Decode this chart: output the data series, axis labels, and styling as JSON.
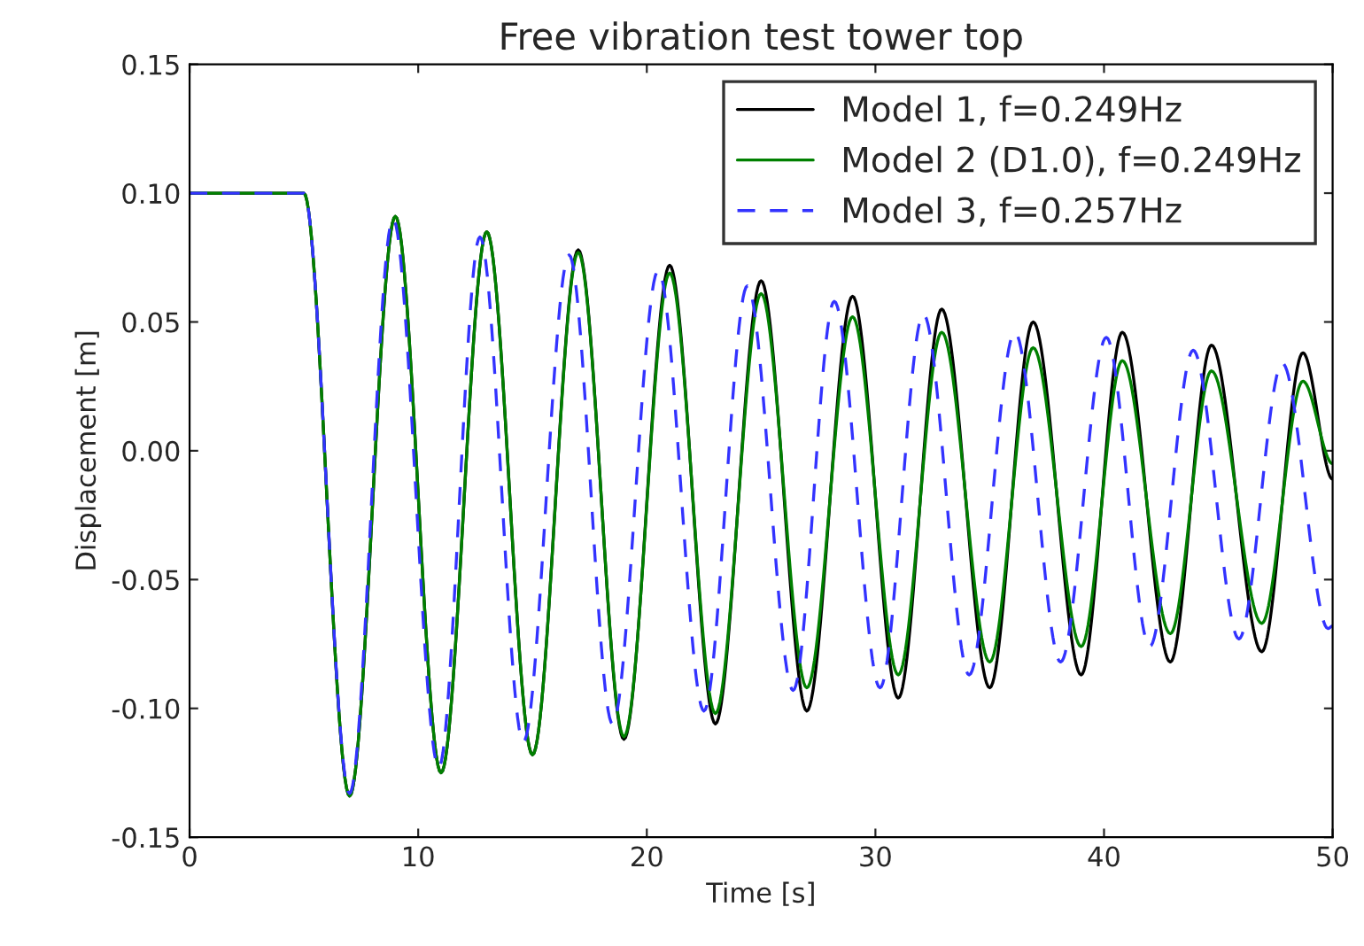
{
  "chart_data": {
    "type": "line",
    "title": "Free vibration test tower top",
    "xlabel": "Time [s]",
    "ylabel": "Displacement [m]",
    "xlim": [
      0,
      50
    ],
    "xticks": [
      0,
      10,
      20,
      30,
      40,
      50
    ],
    "ylim": [
      -0.15,
      0.15
    ],
    "yticks": [
      {
        "value": -0.15,
        "label": "-0.15"
      },
      {
        "value": -0.1,
        "label": "-0.10"
      },
      {
        "value": -0.05,
        "label": "-0.05"
      },
      {
        "value": 0,
        "label": "0.00"
      },
      {
        "value": 0.05,
        "label": "0.05"
      },
      {
        "value": 0.1,
        "label": "0.10"
      },
      {
        "value": 0.15,
        "label": "0.15"
      }
    ],
    "grid": false,
    "legend": "top right",
    "marker": "none",
    "series": [
      {
        "name": "Model 1, f=0.249Hz",
        "color": "#000000",
        "line_style": "solid",
        "x": [
          0,
          5,
          7,
          9,
          11,
          13,
          15,
          17,
          19,
          21,
          23,
          25,
          27,
          29,
          31,
          32.9,
          35,
          36.9,
          39,
          40.8,
          42.9,
          44.7,
          46.9,
          48.7,
          50
        ],
        "values": [
          0.1,
          0.1,
          -0.134,
          0.091,
          -0.125,
          0.085,
          -0.118,
          0.078,
          -0.112,
          0.072,
          -0.106,
          0.066,
          -0.101,
          0.06,
          -0.096,
          0.055,
          -0.092,
          0.05,
          -0.087,
          0.046,
          -0.082,
          0.041,
          -0.078,
          0.038,
          -0.011
        ]
      },
      {
        "name": "Model 2 (D1.0), f=0.249Hz",
        "color": "#008000",
        "line_style": "solid",
        "x": [
          0,
          5,
          7,
          9,
          11,
          13,
          15,
          17,
          19,
          21,
          23,
          25,
          27,
          29,
          31,
          32.9,
          35,
          36.9,
          39,
          40.8,
          42.9,
          44.7,
          46.9,
          48.7,
          50
        ],
        "values": [
          0.1,
          0.1,
          -0.134,
          0.091,
          -0.125,
          0.085,
          -0.118,
          0.077,
          -0.111,
          0.069,
          -0.102,
          0.061,
          -0.092,
          0.052,
          -0.087,
          0.046,
          -0.082,
          0.04,
          -0.076,
          0.035,
          -0.071,
          0.031,
          -0.067,
          0.027,
          -0.005
        ]
      },
      {
        "name": "Model 3, f=0.257Hz",
        "color": "#3333ff",
        "line_style": "dashed",
        "x": [
          0,
          5,
          7,
          8.9,
          10.9,
          12.7,
          14.6,
          16.6,
          18.5,
          20.5,
          22.5,
          24.4,
          26.4,
          28.2,
          30.2,
          32.1,
          34.1,
          36.1,
          38.1,
          40.1,
          42,
          43.9,
          45.9,
          47.8,
          49.8,
          50
        ],
        "values": [
          0.1,
          0.1,
          -0.133,
          0.09,
          -0.123,
          0.083,
          -0.113,
          0.076,
          -0.106,
          0.07,
          -0.101,
          0.064,
          -0.093,
          0.058,
          -0.092,
          0.053,
          -0.087,
          0.046,
          -0.082,
          0.044,
          -0.076,
          0.039,
          -0.073,
          0.034,
          -0.069,
          -0.068
        ]
      }
    ]
  }
}
